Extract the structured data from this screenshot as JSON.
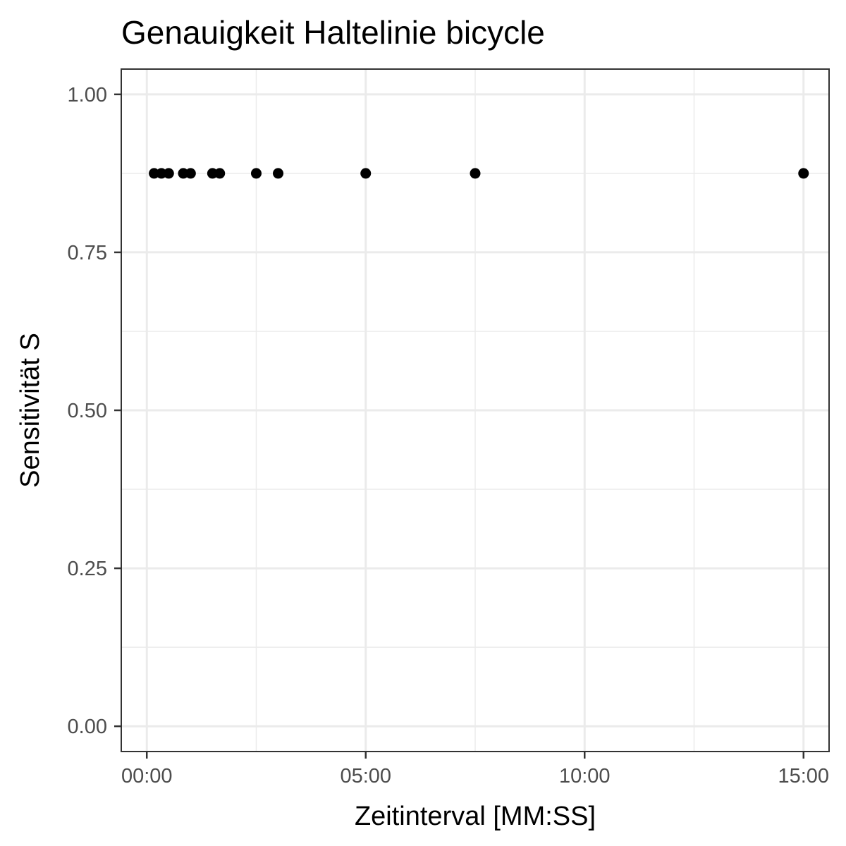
{
  "chart_data": {
    "type": "scatter",
    "title": "Genauigkeit Haltelinie bicycle",
    "xlabel": "Zeitinterval [MM:SS]",
    "ylabel": "Sensitivität S",
    "x_unit": "seconds",
    "xlim": [
      -35,
      935
    ],
    "ylim": [
      -0.04,
      1.04
    ],
    "x_ticks": [
      {
        "value": 0,
        "label": "00:00"
      },
      {
        "value": 300,
        "label": "05:00"
      },
      {
        "value": 600,
        "label": "10:00"
      },
      {
        "value": 900,
        "label": "15:00"
      }
    ],
    "y_ticks": [
      {
        "value": 0.0,
        "label": "0.00"
      },
      {
        "value": 0.25,
        "label": "0.25"
      },
      {
        "value": 0.5,
        "label": "0.50"
      },
      {
        "value": 0.75,
        "label": "0.75"
      },
      {
        "value": 1.0,
        "label": "1.00"
      }
    ],
    "grid": true,
    "point_color": "#000000",
    "points": [
      {
        "x": 10,
        "y": 0.875
      },
      {
        "x": 20,
        "y": 0.875
      },
      {
        "x": 30,
        "y": 0.875
      },
      {
        "x": 50,
        "y": 0.875
      },
      {
        "x": 60,
        "y": 0.875
      },
      {
        "x": 90,
        "y": 0.875
      },
      {
        "x": 100,
        "y": 0.875
      },
      {
        "x": 150,
        "y": 0.875
      },
      {
        "x": 180,
        "y": 0.875
      },
      {
        "x": 300,
        "y": 0.875
      },
      {
        "x": 450,
        "y": 0.875
      },
      {
        "x": 900,
        "y": 0.875
      }
    ]
  }
}
